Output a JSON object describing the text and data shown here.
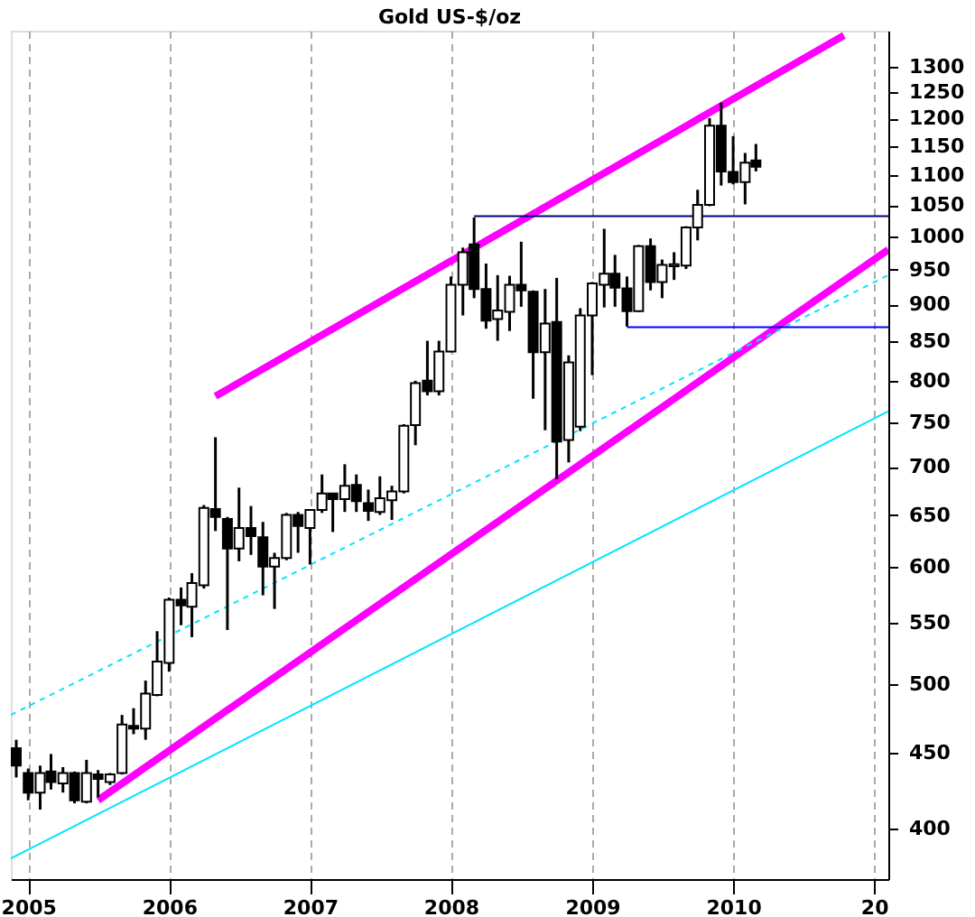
{
  "chart_data": {
    "type": "candlestick",
    "title": "Gold US-$/oz",
    "log": true,
    "grid": "x",
    "x": [
      "2004-12",
      "2005-01",
      "2005-02",
      "2005-03",
      "2005-04",
      "2005-05",
      "2005-06",
      "2005-07",
      "2005-08",
      "2005-09",
      "2005-10",
      "2005-11",
      "2005-12",
      "2006-01",
      "2006-02",
      "2006-03",
      "2006-04",
      "2006-05",
      "2006-06",
      "2006-07",
      "2006-08",
      "2006-09",
      "2006-10",
      "2006-11",
      "2006-12",
      "2007-01",
      "2007-02",
      "2007-03",
      "2007-04",
      "2007-05",
      "2007-06",
      "2007-07",
      "2007-08",
      "2007-09",
      "2007-10",
      "2007-11",
      "2007-12",
      "2008-01",
      "2008-02",
      "2008-03",
      "2008-04",
      "2008-05",
      "2008-06",
      "2008-07",
      "2008-08",
      "2008-09",
      "2008-10",
      "2008-11",
      "2008-12",
      "2009-01",
      "2009-02",
      "2009-03",
      "2009-04",
      "2009-05",
      "2009-06",
      "2009-07",
      "2009-08",
      "2009-09",
      "2009-10",
      "2009-11",
      "2009-12",
      "2010-01",
      "2010-02",
      "2010-03"
    ],
    "ohlc": [
      [
        453,
        459,
        433,
        441
      ],
      [
        436,
        439,
        418,
        423
      ],
      [
        423,
        441,
        412,
        436
      ],
      [
        437,
        449,
        425,
        430
      ],
      [
        429,
        440,
        423,
        436
      ],
      [
        436,
        437,
        416,
        418
      ],
      [
        417,
        445,
        416,
        436
      ],
      [
        435,
        438,
        420,
        432
      ],
      [
        430,
        436,
        428,
        435
      ],
      [
        436,
        477,
        435,
        470
      ],
      [
        469,
        482,
        463,
        467
      ],
      [
        467,
        503,
        459,
        493
      ],
      [
        492,
        543,
        491,
        518
      ],
      [
        517,
        572,
        510,
        570
      ],
      [
        570,
        581,
        548,
        565
      ],
      [
        564,
        594,
        538,
        585
      ],
      [
        583,
        660,
        580,
        657
      ],
      [
        656,
        733,
        634,
        648
      ],
      [
        646,
        648,
        544,
        617
      ],
      [
        617,
        678,
        605,
        637
      ],
      [
        637,
        659,
        611,
        629
      ],
      [
        628,
        643,
        574,
        600
      ],
      [
        600,
        613,
        562,
        608
      ],
      [
        608,
        652,
        606,
        650
      ],
      [
        650,
        653,
        613,
        639
      ],
      [
        637,
        655,
        602,
        655
      ],
      [
        655,
        692,
        652,
        672
      ],
      [
        672,
        672,
        633,
        666
      ],
      [
        666,
        703,
        653,
        680
      ],
      [
        681,
        692,
        653,
        664
      ],
      [
        662,
        676,
        644,
        654
      ],
      [
        653,
        690,
        650,
        667
      ],
      [
        665,
        680,
        645,
        674
      ],
      [
        674,
        748,
        672,
        746
      ],
      [
        747,
        800,
        724,
        797
      ],
      [
        800,
        851,
        782,
        787
      ],
      [
        787,
        851,
        782,
        837
      ],
      [
        837,
        940,
        836,
        928
      ],
      [
        928,
        983,
        885,
        976
      ],
      [
        988,
        1030,
        909,
        922
      ],
      [
        922,
        959,
        867,
        878
      ],
      [
        880,
        942,
        851,
        892
      ],
      [
        890,
        941,
        864,
        928
      ],
      [
        928,
        992,
        897,
        920
      ],
      [
        918,
        920,
        778,
        836
      ],
      [
        836,
        922,
        741,
        874
      ],
      [
        876,
        938,
        687,
        728
      ],
      [
        730,
        832,
        705,
        823
      ],
      [
        745,
        895,
        740,
        885
      ],
      [
        885,
        932,
        807,
        930
      ],
      [
        928,
        1012,
        896,
        944
      ],
      [
        944,
        972,
        897,
        924
      ],
      [
        923,
        940,
        870,
        891
      ],
      [
        891,
        987,
        890,
        985
      ],
      [
        985,
        997,
        920,
        932
      ],
      [
        932,
        965,
        909,
        957
      ],
      [
        955,
        976,
        935,
        958
      ],
      [
        956,
        1016,
        951,
        1014
      ],
      [
        1014,
        1075,
        994,
        1050
      ],
      [
        1050,
        1201,
        1048,
        1187
      ],
      [
        1187,
        1230,
        1082,
        1106
      ],
      [
        1105,
        1168,
        1084,
        1088
      ],
      [
        1088,
        1138,
        1051,
        1121
      ],
      [
        1125,
        1154,
        1106,
        1114
      ]
    ],
    "series": [
      {
        "type": "line",
        "color": "#ff00ff",
        "line_style": "solid",
        "x": [
          "2006-05",
          "2010-10-15"
        ],
        "values": [
          781,
          1365
        ]
      },
      {
        "type": "line",
        "color": "#ff00ff",
        "line_style": "solid",
        "x": [
          "2005-07",
          "2011-02-07"
        ],
        "values": [
          418,
          980
        ]
      },
      {
        "type": "line",
        "color": "#00e5ff",
        "line_style": "dashed",
        "x": [
          "2004-11-17",
          "2011-02-07"
        ],
        "values": [
          477,
          942
        ]
      },
      {
        "type": "line",
        "color": "#00e5ff",
        "line_style": "solid",
        "x": [
          "2004-11-17",
          "2011-02-07"
        ],
        "values": [
          382,
          763
        ]
      },
      {
        "type": "line",
        "color": "#000080",
        "line_style": "solid",
        "x": [
          "2008-03",
          "2011-02-07"
        ],
        "values": [
          1032,
          1032
        ]
      },
      {
        "type": "line",
        "color": "#0000ff",
        "line_style": "solid",
        "x": [
          "2009-04",
          "2011-02-07"
        ],
        "values": [
          869,
          869
        ]
      }
    ],
    "xlim": [
      "2004-11-17",
      "2011-02-07"
    ],
    "xticks": [
      {
        "value": "2005-01-01",
        "label": "2005"
      },
      {
        "value": "2006-01-01",
        "label": "2006"
      },
      {
        "value": "2007-01-01",
        "label": "2007"
      },
      {
        "value": "2008-01-01",
        "label": "2008"
      },
      {
        "value": "2009-01-01",
        "label": "2009"
      },
      {
        "value": "2010-01-01",
        "label": "2010"
      },
      {
        "value": "2011-01-01",
        "label": "20"
      }
    ],
    "ylim": [
      370,
      1375
    ],
    "yticks": [
      400,
      450,
      500,
      550,
      600,
      650,
      700,
      750,
      800,
      850,
      900,
      950,
      1000,
      1050,
      1100,
      1150,
      1200,
      1250,
      1300
    ]
  }
}
